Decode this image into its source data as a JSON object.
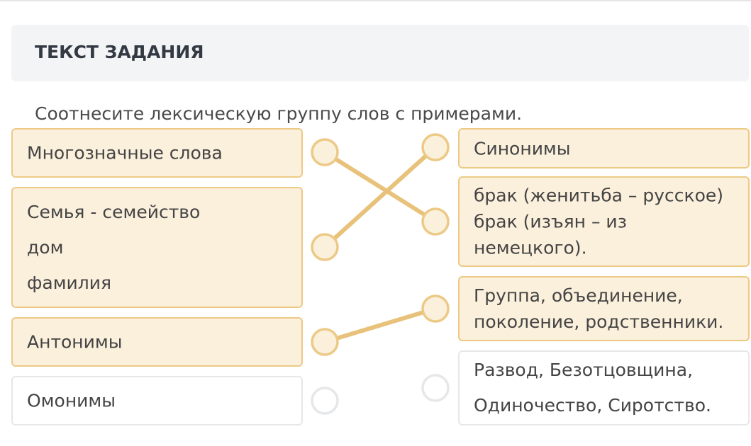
{
  "header": {
    "title": "ТЕКСТ ЗАДАНИЯ"
  },
  "instruction": "Соотнесите лексическую группу слов с примерами.",
  "left_items": [
    {
      "lines": [
        "Многозначные слова"
      ],
      "matched": true
    },
    {
      "lines": [
        "Семья - семейство",
        "дом",
        "фамилия"
      ],
      "matched": true
    },
    {
      "lines": [
        "Антонимы"
      ],
      "matched": true
    },
    {
      "lines": [
        "Омонимы"
      ],
      "matched": false
    }
  ],
  "right_items": [
    {
      "lines": [
        "Синонимы"
      ],
      "matched": true
    },
    {
      "lines": [
        "брак (женитьба – русское)",
        "брак (изъян – из",
        "немецкого)."
      ],
      "matched": true
    },
    {
      "lines": [
        "Группа, объединение,",
        "поколение, родственники."
      ],
      "matched": true
    },
    {
      "lines": [
        "Развод, Безотцовщина,",
        "Одиночество, Сиротство."
      ],
      "matched": false
    }
  ],
  "connections": [
    [
      0,
      1
    ],
    [
      1,
      0
    ],
    [
      2,
      2
    ]
  ],
  "colors": {
    "matched_fill": "#fbf0dc",
    "matched_border": "#ecca86",
    "line": "#e8c27a",
    "unmatched_border": "#e5e7e9"
  }
}
